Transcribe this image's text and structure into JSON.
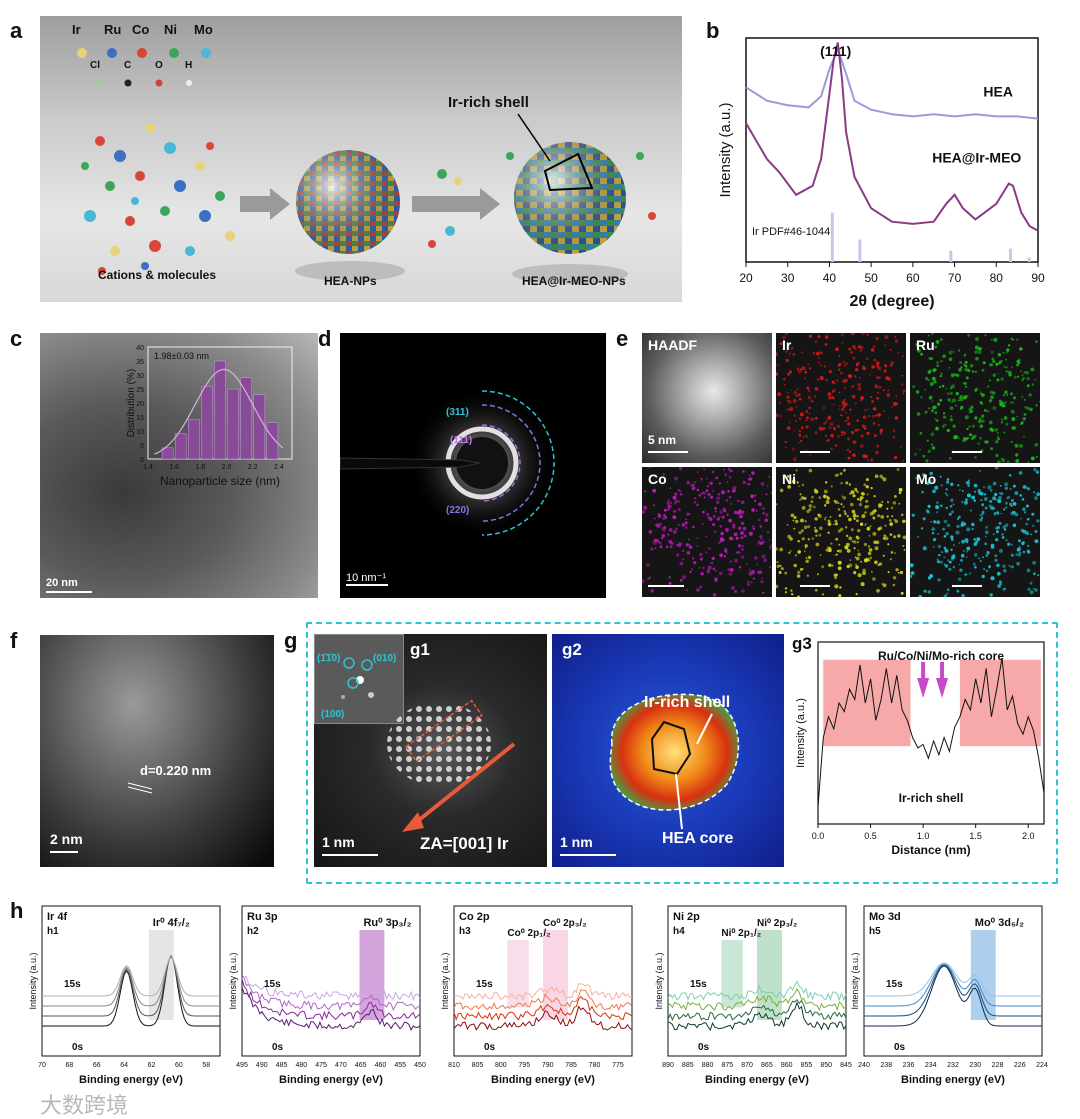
{
  "panels": {
    "a": "a",
    "b": "b",
    "c": "c",
    "d": "d",
    "e": "e",
    "f": "f",
    "g": "g",
    "h": "h"
  },
  "a": {
    "elements": [
      "Ir",
      "Ru",
      "Co",
      "Ni",
      "Mo"
    ],
    "molecules": [
      "Cl",
      "C",
      "O",
      "H"
    ],
    "label_cations": "Cations & molecules",
    "label_hea": "HEA-NPs",
    "label_hea_ir": "HEA@Ir-MEO-NPs",
    "label_shell": "Ir-rich shell",
    "colors": {
      "Ir": "#e8d27a",
      "Ru": "#3a6fc4",
      "Co": "#d8463a",
      "Ni": "#3aa65a",
      "Mo": "#48b8d4"
    }
  },
  "b": {
    "chart_data": {
      "type": "line",
      "title": "",
      "xlabel": "2θ (degree)",
      "ylabel": "Intensity (a.u.)",
      "xlim": [
        20,
        90
      ],
      "xticks": [
        20,
        30,
        40,
        50,
        60,
        70,
        80,
        90
      ],
      "peak_label": "(111)",
      "series": [
        {
          "name": "HEA",
          "color": "#9c9ad8",
          "x": [
            20,
            25,
            30,
            35,
            38,
            40,
            42,
            44,
            46,
            50,
            55,
            60,
            65,
            70,
            75,
            80,
            85,
            90
          ],
          "y": [
            0.78,
            0.72,
            0.7,
            0.69,
            0.74,
            0.86,
            0.95,
            0.84,
            0.72,
            0.68,
            0.66,
            0.65,
            0.66,
            0.65,
            0.66,
            0.65,
            0.65,
            0.64
          ]
        },
        {
          "name": "HEA@Ir-MEO",
          "color": "#8a3b84",
          "x": [
            20,
            25,
            28,
            32,
            36,
            38,
            40,
            41,
            42,
            43,
            44,
            46,
            50,
            55,
            60,
            65,
            68,
            70,
            72,
            75,
            80,
            83,
            84,
            86,
            88,
            90
          ],
          "y": [
            0.62,
            0.46,
            0.4,
            0.3,
            0.34,
            0.46,
            0.75,
            0.9,
            0.98,
            0.82,
            0.58,
            0.38,
            0.24,
            0.18,
            0.17,
            0.18,
            0.26,
            0.3,
            0.24,
            0.19,
            0.26,
            0.35,
            0.34,
            0.22,
            0.16,
            0.14
          ]
        }
      ],
      "reference": {
        "name": "Ir PDF#46-1044",
        "color": "#c6c6ef",
        "positions": [
          40.7,
          47.3,
          69.1,
          83.4,
          87.9
        ],
        "heights": [
          0.22,
          0.1,
          0.05,
          0.06,
          0.02
        ]
      }
    }
  },
  "c": {
    "chart_data": {
      "type": "bar",
      "title": "1.98±0.03 nm",
      "xlabel": "Nanoparticle size (nm)",
      "ylabel": "Distribution (%)",
      "ylim": [
        0,
        40
      ],
      "xlim": [
        1.4,
        2.5
      ],
      "xticks": [
        1.4,
        1.6,
        1.8,
        2.0,
        2.2,
        2.4
      ],
      "yticks": [
        0,
        5,
        10,
        15,
        20,
        25,
        30,
        35,
        40
      ],
      "categories": [
        1.55,
        1.65,
        1.75,
        1.85,
        1.95,
        2.05,
        2.15,
        2.25,
        2.35
      ],
      "values": [
        4,
        9,
        14,
        26,
        35,
        25,
        29,
        23,
        13
      ]
    },
    "scale": "20 nm"
  },
  "d": {
    "rings": [
      "(311)",
      "(111)",
      "(220)"
    ],
    "scale": "10 nm⁻¹"
  },
  "e": {
    "tiles": [
      "HAADF",
      "Ir",
      "Ru",
      "Co",
      "Ni",
      "Mo"
    ],
    "scale": "5 nm",
    "colors": {
      "Ir": "#e01818",
      "Ru": "#18b818",
      "Co": "#c418c4",
      "Ni": "#d8d418",
      "Mo": "#18c4d4"
    }
  },
  "f": {
    "d_label": "d=0.220 nm",
    "scale": "2 nm"
  },
  "g": {
    "g1": {
      "label": "g1",
      "fft": [
        "(1̄1̄0)",
        "(010)",
        "(100)"
      ],
      "za": "ZA=[001] Ir",
      "scale": "1 nm"
    },
    "g2": {
      "label": "g2",
      "shell": "Ir-rich shell",
      "core": "HEA core",
      "scale": "1 nm"
    },
    "g3": {
      "label": "g3",
      "core_label": "Ru/Co/Ni/Mo-rich core",
      "shell_label": "Ir-rich shell",
      "chart_data": {
        "type": "line",
        "xlabel": "Distance (nm)",
        "ylabel": "Intensity (a.u.)",
        "xlim": [
          0,
          2.15
        ],
        "xticks": [
          0.0,
          0.5,
          1.0,
          1.5,
          2.0
        ],
        "series": [
          {
            "name": "profile",
            "x": [
              0.0,
              0.05,
              0.1,
              0.15,
              0.2,
              0.25,
              0.3,
              0.35,
              0.4,
              0.45,
              0.5,
              0.55,
              0.6,
              0.65,
              0.7,
              0.75,
              0.8,
              0.85,
              0.9,
              0.95,
              1.0,
              1.05,
              1.1,
              1.15,
              1.2,
              1.25,
              1.3,
              1.35,
              1.4,
              1.45,
              1.5,
              1.55,
              1.6,
              1.65,
              1.7,
              1.75,
              1.8,
              1.85,
              1.9,
              1.95,
              2.0,
              2.05,
              2.1,
              2.15
            ],
            "y": [
              0.1,
              0.5,
              0.62,
              0.55,
              0.7,
              0.65,
              0.78,
              0.72,
              0.92,
              0.7,
              0.84,
              0.6,
              0.72,
              0.9,
              0.7,
              0.86,
              0.66,
              0.6,
              0.5,
              0.44,
              0.46,
              0.38,
              0.48,
              0.4,
              0.5,
              0.42,
              0.56,
              0.62,
              0.72,
              0.66,
              0.84,
              0.7,
              0.9,
              0.62,
              0.78,
              0.96,
              0.66,
              0.74,
              0.58,
              0.52,
              0.62,
              0.54,
              0.38,
              0.18
            ]
          }
        ]
      }
    }
  },
  "h": {
    "xlabel": "Binding energy (eV)",
    "ylabel": "Intensity (a.u.)",
    "plots": [
      {
        "id": "h1",
        "title": "Ir 4f",
        "peak": "Ir⁰ 4f₇/₂",
        "start": "15s",
        "end": "0s",
        "xticks": [
          70,
          68,
          66,
          64,
          62,
          60,
          58
        ],
        "xlim": [
          70,
          57
        ],
        "colors": [
          "#111111",
          "#555555",
          "#888888",
          "#b0b0b0"
        ],
        "box_color": "#cfcfcf"
      },
      {
        "id": "h2",
        "title": "Ru 3p",
        "peak": "Ru⁰ 3p₃/₂",
        "start": "15s",
        "end": "0s",
        "xticks": [
          495,
          490,
          485,
          480,
          475,
          470,
          465,
          460,
          455,
          450
        ],
        "xlim": [
          495,
          450
        ],
        "colors": [
          "#5a1a6e",
          "#8a2a9a",
          "#b06ac8",
          "#c8a6e8"
        ],
        "box_color": "#b05ac0"
      },
      {
        "id": "h3",
        "title": "Co 2p",
        "peak_a": "Co⁰ 2p₁/₂",
        "peak_b": "Co⁰ 2p₃/₂",
        "start": "15s",
        "end": "0s",
        "xticks": [
          810,
          805,
          800,
          795,
          790,
          785,
          780,
          775
        ],
        "xlim": [
          810,
          772
        ],
        "colors": [
          "#8a1010",
          "#d83010",
          "#f07a50",
          "#f6b0a0"
        ],
        "box_color": "#f2b4d0"
      },
      {
        "id": "h4",
        "title": "Ni 2p",
        "peak_a": "Ni⁰ 2p₁/₂",
        "peak_b": "Ni⁰ 2p₃/₂",
        "start": "15s",
        "end": "0s",
        "xticks": [
          890,
          885,
          880,
          875,
          870,
          865,
          860,
          855,
          850,
          845
        ],
        "xlim": [
          890,
          845
        ],
        "colors": [
          "#0c3a30",
          "#2a6a3a",
          "#7aae3a",
          "#7ad0b0"
        ],
        "box_color": "#8ac8a0"
      },
      {
        "id": "h5",
        "title": "Mo 3d",
        "peak": "Mo⁰ 3d₅/₂",
        "start": "15s",
        "end": "0s",
        "xticks": [
          240,
          238,
          236,
          234,
          232,
          230,
          228,
          226,
          224
        ],
        "xlim": [
          240,
          224
        ],
        "colors": [
          "#0c2a4a",
          "#1a4a7a",
          "#4a8ac8",
          "#9ac0e8"
        ],
        "box_color": "#6aa8e0"
      }
    ]
  },
  "watermark": "大数跨境"
}
